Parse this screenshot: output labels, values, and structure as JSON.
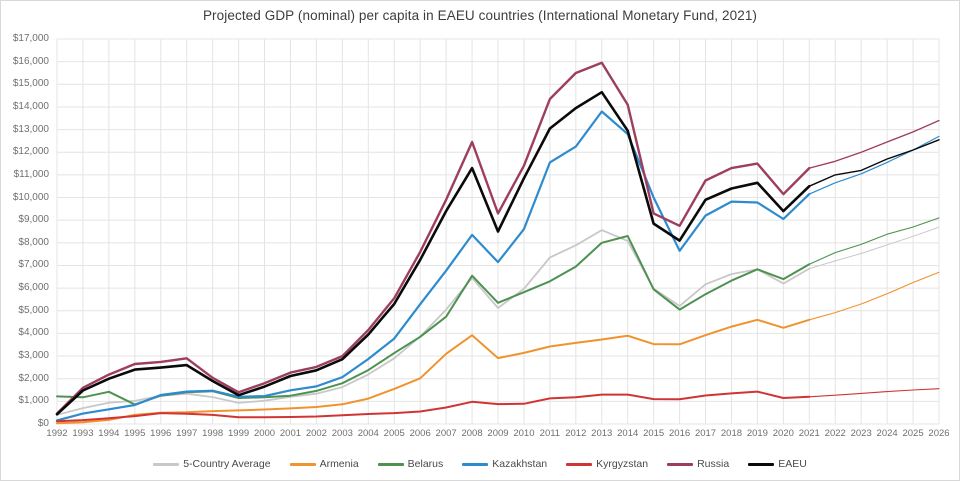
{
  "chart_data": {
    "type": "line",
    "title": "Projected GDP (nominal) per capita in EAEU countries (International Monetary Fund, 2021)",
    "x": [
      1992,
      1993,
      1994,
      1995,
      1996,
      1997,
      1998,
      1999,
      2000,
      2001,
      2002,
      2003,
      2004,
      2005,
      2006,
      2007,
      2008,
      2009,
      2010,
      2011,
      2012,
      2013,
      2014,
      2015,
      2016,
      2017,
      2018,
      2019,
      2020,
      2021,
      2022,
      2023,
      2024,
      2025,
      2026
    ],
    "ylim": [
      0,
      17000
    ],
    "ytick_step": 1000,
    "ytick_prefix": "$",
    "grid": true,
    "legend_position": "bottom",
    "projection_start_x": 2021,
    "gridline_color": "#e4e4e4",
    "series": [
      {
        "name": "5-Country Average",
        "color": "#c8c8c8",
        "values": [
          400,
          700,
          940,
          1020,
          1250,
          1340,
          1190,
          930,
          1030,
          1200,
          1340,
          1630,
          2190,
          2900,
          3860,
          5050,
          6450,
          5120,
          5970,
          7350,
          7890,
          8560,
          8080,
          5980,
          5210,
          6170,
          6620,
          6830,
          6200,
          6860,
          7200,
          7530,
          7910,
          8290,
          8690
        ]
      },
      {
        "name": "Armenia",
        "color": "#f0932e",
        "values": [
          30,
          80,
          180,
          400,
          500,
          520,
          570,
          600,
          640,
          690,
          750,
          870,
          1120,
          1550,
          2020,
          3100,
          3920,
          2910,
          3140,
          3420,
          3580,
          3730,
          3900,
          3530,
          3520,
          3920,
          4300,
          4600,
          4250,
          4600,
          4920,
          5300,
          5750,
          6250,
          6700
        ]
      },
      {
        "name": "Belarus",
        "color": "#4e9150",
        "values": [
          1220,
          1180,
          1420,
          860,
          1250,
          1400,
          1450,
          1150,
          1180,
          1250,
          1460,
          1800,
          2380,
          3130,
          3850,
          4740,
          6550,
          5350,
          5820,
          6300,
          6950,
          8000,
          8300,
          5950,
          5050,
          5730,
          6330,
          6830,
          6400,
          7050,
          7570,
          7930,
          8380,
          8700,
          9100
        ]
      },
      {
        "name": "Kazakhstan",
        "color": "#2e8bce",
        "values": [
          160,
          460,
          650,
          840,
          1280,
          1430,
          1470,
          1200,
          1230,
          1490,
          1660,
          2070,
          2870,
          3770,
          5290,
          6770,
          8350,
          7150,
          8600,
          11550,
          12250,
          13800,
          12800,
          10000,
          7650,
          9200,
          9820,
          9780,
          9050,
          10150,
          10650,
          11050,
          11550,
          12100,
          12700
        ]
      },
      {
        "name": "Kyrgyzstan",
        "color": "#d13434",
        "values": [
          120,
          170,
          250,
          350,
          480,
          450,
          400,
          300,
          300,
          310,
          330,
          390,
          440,
          480,
          550,
          730,
          980,
          880,
          890,
          1130,
          1180,
          1300,
          1300,
          1100,
          1090,
          1260,
          1350,
          1430,
          1150,
          1200,
          1270,
          1350,
          1430,
          1500,
          1560
        ]
      },
      {
        "name": "Russia",
        "color": "#9d3e5e",
        "values": [
          460,
          1600,
          2180,
          2650,
          2740,
          2900,
          2040,
          1400,
          1800,
          2270,
          2520,
          3000,
          4150,
          5550,
          7600,
          9900,
          12450,
          9300,
          11400,
          14350,
          15500,
          15950,
          14100,
          9300,
          8750,
          10750,
          11300,
          11500,
          10150,
          11300,
          11600,
          12000,
          12450,
          12900,
          13400
        ]
      },
      {
        "name": "EAEU",
        "color": "#0a0a0a",
        "values": [
          430,
          1480,
          2000,
          2400,
          2490,
          2600,
          1900,
          1270,
          1650,
          2120,
          2370,
          2860,
          3950,
          5300,
          7250,
          9400,
          11300,
          8500,
          10850,
          13050,
          13950,
          14650,
          12950,
          8850,
          8100,
          9900,
          10400,
          10650,
          9400,
          10500,
          11000,
          11200,
          11700,
          12100,
          12550
        ]
      }
    ]
  }
}
